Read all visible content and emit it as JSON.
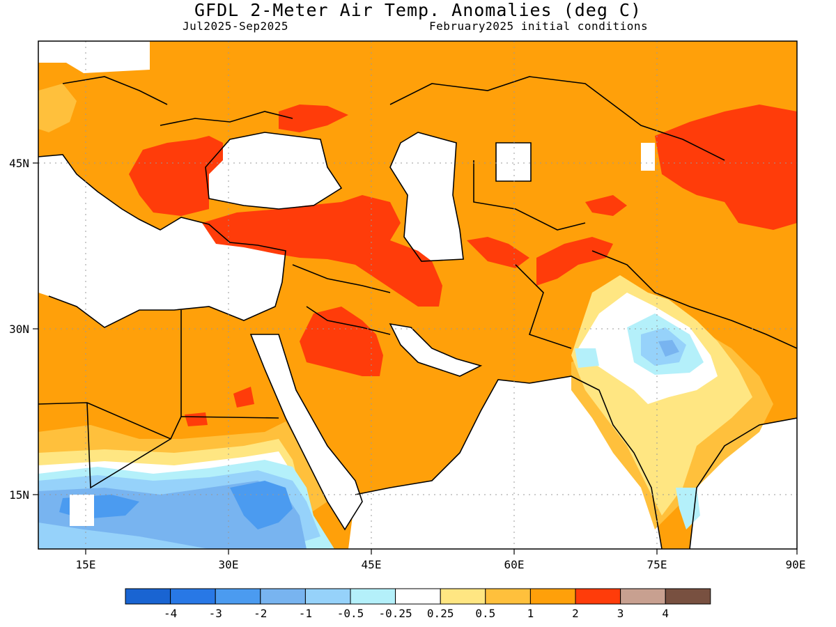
{
  "header": {
    "title": "GFDL 2-Meter Air Temp. Anomalies (deg C)",
    "period": "Jul2025-Sep2025",
    "init": "February2025 initial conditions"
  },
  "axes": {
    "lon_ticks": [
      "15E",
      "30E",
      "45E",
      "60E",
      "75E",
      "90E"
    ],
    "lat_ticks": [
      "45N",
      "30N",
      "15N"
    ]
  },
  "legend": {
    "labels": [
      "-4",
      "-3",
      "-2",
      "-1",
      "-0.5",
      "-0.25",
      "0.25",
      "0.5",
      "1",
      "2",
      "3",
      "4"
    ],
    "colors": [
      "#1964d2",
      "#2878e6",
      "#4b9bf0",
      "#78b4f0",
      "#96d2fa",
      "#b4f0fa",
      "#ffffff",
      "#ffe682",
      "#ffc03c",
      "#ffa00a",
      "#ff3c0a",
      "#c8a090",
      "#785040"
    ]
  },
  "map": {
    "region": "Middle East, North Africa, South Asia",
    "lon_range": [
      10,
      90
    ],
    "lat_range": [
      10,
      55
    ]
  }
}
